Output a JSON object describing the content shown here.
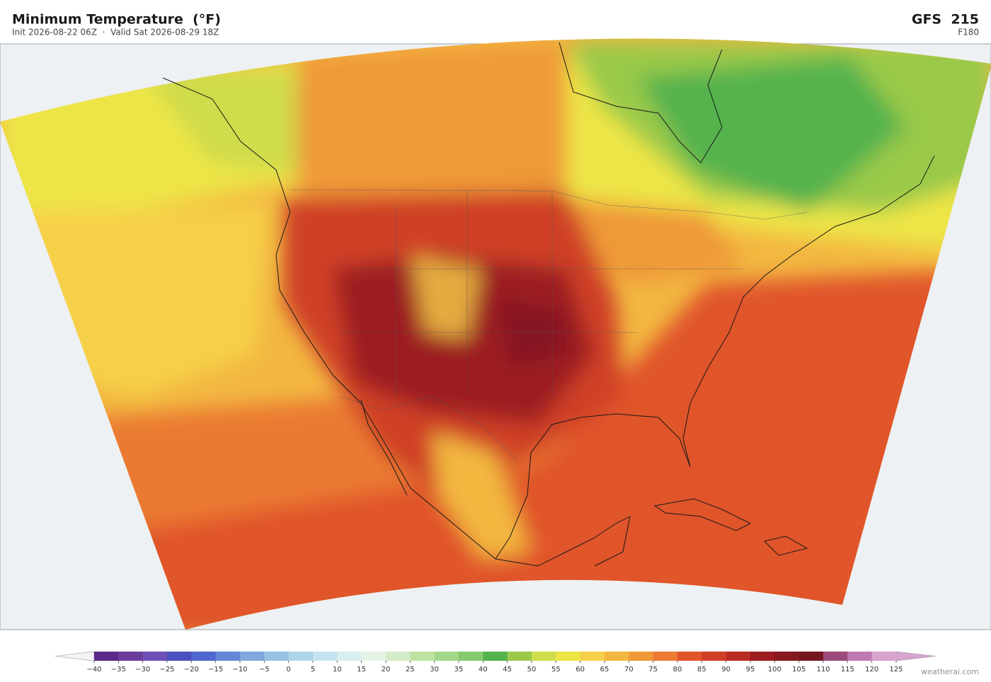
{
  "header": {
    "title": "Minimum Temperature  (°F)",
    "subtitle": "Init 2026-08-22 06Z  ·  Valid Sat 2026-08-29 18Z",
    "model": "GFS  215",
    "forecast_hour": "F180"
  },
  "colorbar": {
    "ticks": [
      {
        "value": -40,
        "label": "−40"
      },
      {
        "value": -35,
        "label": "−35"
      },
      {
        "value": -30,
        "label": "−30"
      },
      {
        "value": -25,
        "label": "−25"
      },
      {
        "value": -20,
        "label": "−20"
      },
      {
        "value": -15,
        "label": "−15"
      },
      {
        "value": -10,
        "label": "−10"
      },
      {
        "value": -5,
        "label": "−5"
      },
      0,
      5,
      10,
      15,
      20,
      25,
      30,
      35,
      40,
      45,
      50,
      55,
      60,
      65,
      70,
      75,
      80,
      85,
      90,
      95,
      100,
      105,
      110,
      115,
      120,
      125
    ],
    "colors": [
      "#5b2a86",
      "#6a3d9a",
      "#6f4fb5",
      "#4b4fbf",
      "#4f67cf",
      "#6389d6",
      "#7fa8dc",
      "#96c1e3",
      "#aed4ea",
      "#c4e3ef",
      "#d9eef0",
      "#e4f2e6",
      "#d4ecc8",
      "#bde3a2",
      "#a3d88a",
      "#86cb6e",
      "#55b24d",
      "#9ac94a",
      "#cfdc4b",
      "#ede546",
      "#f6d04a",
      "#f3b741",
      "#ef9a38",
      "#ea7a33",
      "#e0552a",
      "#cf3f26",
      "#b82c24",
      "#9c1c20",
      "#861820",
      "#741620",
      "#9b4a7a",
      "#c07ab0",
      "#d7a3cf"
    ],
    "under_color": "#f4f4f8",
    "over_color": "#d7a3cf"
  },
  "footer": {
    "credit": "weatherai.com"
  }
}
